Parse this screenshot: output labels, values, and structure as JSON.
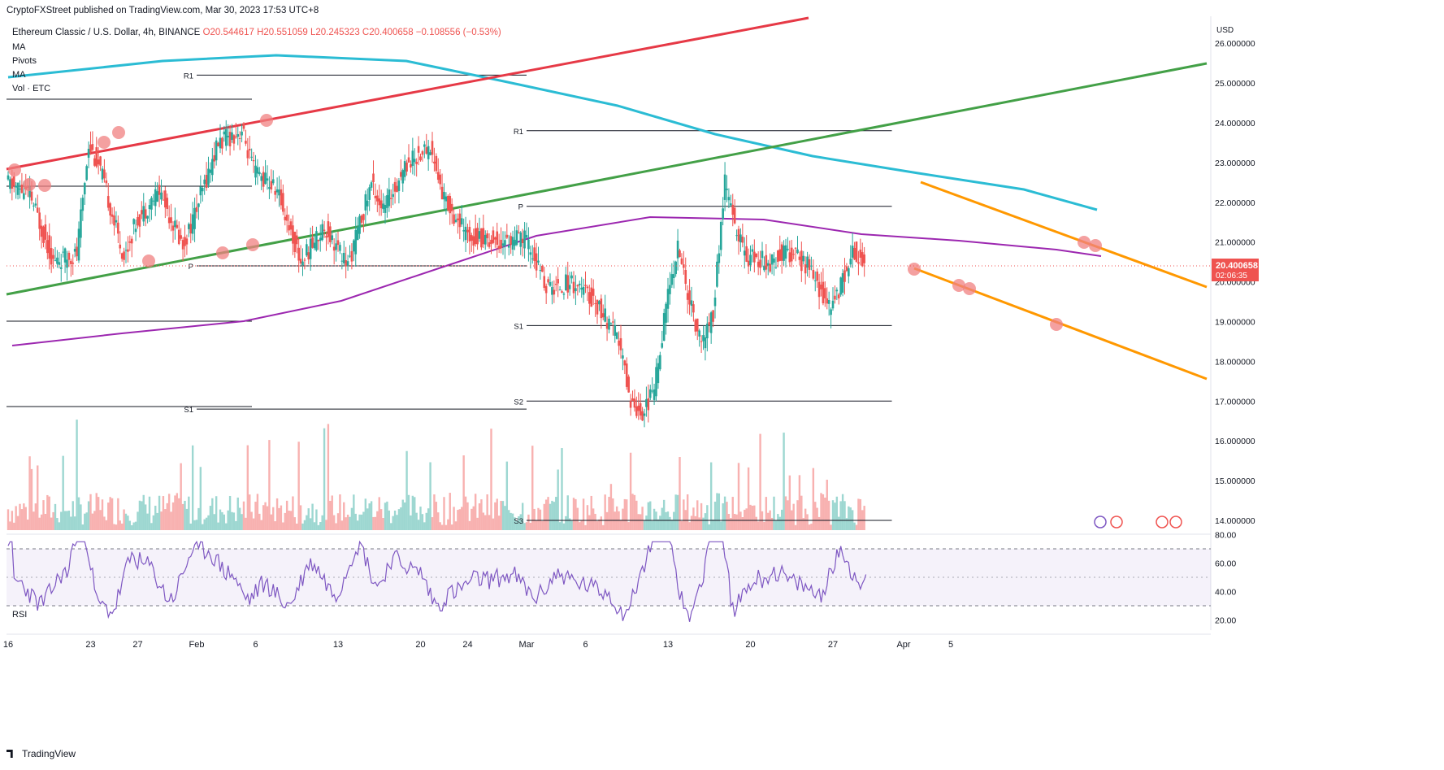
{
  "published": "CryptoFXStreet published on TradingView.com, Mar 30, 2023 17:53 UTC+8",
  "symbol": {
    "name": "Ethereum Classic / U.S. Dollar, 4h, BINANCE",
    "o": "O20.544617",
    "h": "H20.551059",
    "l": "L20.245323",
    "c": "C20.400658",
    "chg": "−0.108556 (−0.53%)"
  },
  "indicators": [
    "MA",
    "Pivots",
    "MA",
    "Vol · ETC"
  ],
  "rsi_label": "RSI",
  "footer": "TradingView",
  "colors": {
    "up": "#26a69a",
    "down": "#ef5350",
    "ma_cyan": "#2bbcd4",
    "ma_purple": "#9c27b0",
    "trend_red": "#e63946",
    "trend_green": "#43a047",
    "trend_orange": "#ff9800",
    "rsi": "#7e57c2",
    "touch": "#f08080"
  },
  "chart_data": {
    "type": "candlestick",
    "currency": "USD",
    "last_price": "20.400658",
    "countdown": "02:06:35",
    "ylim": [
      14,
      26.5
    ],
    "y_ticks": [
      "26.000000",
      "25.000000",
      "24.000000",
      "23.000000",
      "22.000000",
      "21.000000",
      "20.000000",
      "19.000000",
      "18.000000",
      "17.000000",
      "16.000000",
      "15.000000",
      "14.000000"
    ],
    "x_ticks": [
      "16",
      "23",
      "27",
      "Feb",
      "6",
      "13",
      "20",
      "24",
      "Mar",
      "6",
      "13",
      "20",
      "27",
      "Apr",
      "5"
    ],
    "x_tick_days": [
      0,
      7,
      11,
      16,
      21,
      28,
      35,
      39,
      44,
      49,
      56,
      63,
      70,
      76,
      80
    ],
    "price_path": [
      [
        0,
        22.5
      ],
      [
        2,
        22.2
      ],
      [
        4,
        20.5
      ],
      [
        6,
        20.7
      ],
      [
        7,
        23.5
      ],
      [
        8,
        22.8
      ],
      [
        10,
        20.6
      ],
      [
        11,
        21.5
      ],
      [
        13,
        22.3
      ],
      [
        15,
        20.9
      ],
      [
        16,
        21.7
      ],
      [
        18,
        23.5
      ],
      [
        20,
        23.8
      ],
      [
        21,
        22.8
      ],
      [
        23,
        22.3
      ],
      [
        25,
        20.5
      ],
      [
        27,
        21.4
      ],
      [
        29,
        20.4
      ],
      [
        31,
        22.5
      ],
      [
        32,
        21.8
      ],
      [
        34,
        23.0
      ],
      [
        36,
        23.4
      ],
      [
        37,
        22.2
      ],
      [
        39,
        21.2
      ],
      [
        42,
        21.0
      ],
      [
        44,
        21.1
      ],
      [
        46,
        19.8
      ],
      [
        48,
        20.0
      ],
      [
        50,
        19.5
      ],
      [
        52,
        18.5
      ],
      [
        53,
        17.0
      ],
      [
        54,
        16.7
      ],
      [
        55,
        17.3
      ],
      [
        56,
        19.4
      ],
      [
        57,
        20.9
      ],
      [
        58,
        19.5
      ],
      [
        59,
        18.4
      ],
      [
        60,
        19.2
      ],
      [
        61,
        22.5
      ],
      [
        62,
        21.2
      ],
      [
        63,
        20.6
      ],
      [
        65,
        20.5
      ],
      [
        66,
        20.8
      ],
      [
        68,
        20.4
      ],
      [
        70,
        19.3
      ],
      [
        71,
        20.1
      ],
      [
        72,
        20.8
      ],
      [
        72.8,
        20.4
      ]
    ],
    "pivot_levels": [
      {
        "label": "R1",
        "value": 25.2,
        "from": 16,
        "to": 44
      },
      {
        "label": "P",
        "value": 20.4,
        "from": 16,
        "to": 44
      },
      {
        "label": "S1",
        "value": 16.8,
        "from": 16,
        "to": 44
      },
      {
        "label": "R1",
        "value": 23.8,
        "from": 44,
        "to": 75
      },
      {
        "label": "P",
        "value": 21.9,
        "from": 44,
        "to": 75
      },
      {
        "label": "S1",
        "value": 18.9,
        "from": 44,
        "to": 75
      },
      {
        "label": "S2",
        "value": 17.0,
        "from": 44,
        "to": 75
      },
      {
        "label": "S3",
        "value": 14.0,
        "from": 44,
        "to": 75
      }
    ],
    "rsi": {
      "ylim": [
        15,
        85
      ],
      "y_ticks": [
        "80.00",
        "60.00",
        "40.00",
        "20.00"
      ],
      "upper": 70,
      "lower": 30,
      "last": 52
    }
  }
}
